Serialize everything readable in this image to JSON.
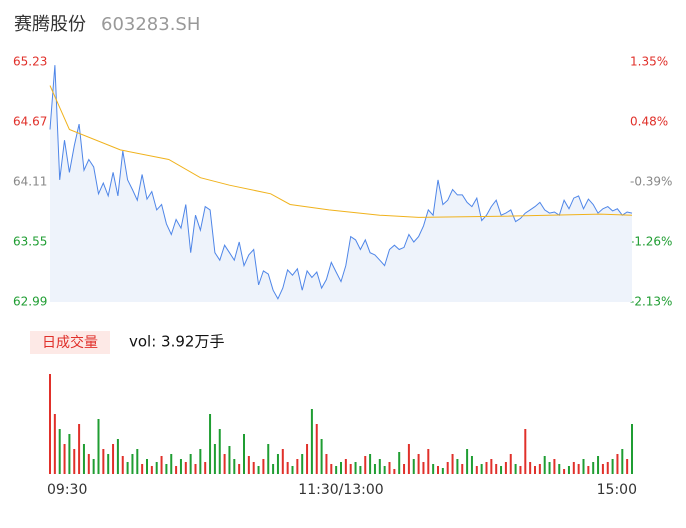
{
  "header": {
    "name": "赛腾股份",
    "code": "603283.SH"
  },
  "chart_data": {
    "type": "intraday",
    "xlim": [
      0,
      240
    ],
    "xticks": [
      {
        "value": 0,
        "label": "09:30"
      },
      {
        "value": 120,
        "label": "11:30/13:00"
      },
      {
        "value": 240,
        "label": "15:00"
      }
    ],
    "ylim": [
      62.99,
      65.23
    ],
    "yticks": [
      65.23,
      64.67,
      64.11,
      63.55,
      62.99
    ],
    "y2lim": [
      -2.13,
      1.35
    ],
    "y2ticks": [
      {
        "value": 1.35,
        "label": "1.35%"
      },
      {
        "value": 0.48,
        "label": "0.48%"
      },
      {
        "value": -0.39,
        "label": "-0.39%"
      },
      {
        "value": -1.26,
        "label": "-1.26%"
      },
      {
        "value": -2.13,
        "label": "-2.13%"
      }
    ],
    "tick_colors": [
      "#e0302a",
      "#e0302a",
      "#888888",
      "#1f9d32",
      "#1f9d32"
    ],
    "price": {
      "color": "#4f86e8",
      "fill": "#eef3fb",
      "x": [
        0,
        2,
        4,
        6,
        8,
        10,
        12,
        14,
        16,
        18,
        20,
        22,
        24,
        26,
        28,
        30,
        32,
        34,
        36,
        38,
        40,
        42,
        44,
        46,
        48,
        50,
        52,
        54,
        56,
        58,
        60,
        62,
        64,
        66,
        68,
        70,
        72,
        74,
        76,
        78,
        80,
        82,
        84,
        86,
        88,
        90,
        92,
        94,
        96,
        98,
        100,
        102,
        104,
        106,
        108,
        110,
        112,
        114,
        116,
        118,
        120,
        122,
        124,
        126,
        128,
        130,
        132,
        134,
        136,
        138,
        140,
        142,
        144,
        146,
        148,
        150,
        152,
        154,
        156,
        158,
        160,
        162,
        164,
        166,
        168,
        170,
        172,
        174,
        176,
        178,
        180,
        182,
        184,
        186,
        188,
        190,
        192,
        194,
        196,
        198,
        200,
        202,
        204,
        206,
        208,
        210,
        212,
        214,
        216,
        218,
        220,
        222,
        224,
        226,
        228,
        230,
        232,
        234,
        236,
        238,
        240
      ],
      "values": [
        64.6,
        65.2,
        64.13,
        64.5,
        64.2,
        64.45,
        64.65,
        64.22,
        64.32,
        64.25,
        64.0,
        64.1,
        63.98,
        64.2,
        63.98,
        64.4,
        64.13,
        64.04,
        63.94,
        64.18,
        63.95,
        64.02,
        63.85,
        63.9,
        63.72,
        63.62,
        63.76,
        63.68,
        63.9,
        63.45,
        63.8,
        63.66,
        63.88,
        63.85,
        63.45,
        63.38,
        63.52,
        63.45,
        63.38,
        63.55,
        63.33,
        63.43,
        63.48,
        63.15,
        63.28,
        63.25,
        63.1,
        63.02,
        63.12,
        63.29,
        63.24,
        63.3,
        63.1,
        63.28,
        63.22,
        63.27,
        63.12,
        63.2,
        63.36,
        63.27,
        63.18,
        63.33,
        63.6,
        63.57,
        63.48,
        63.57,
        63.45,
        63.43,
        63.38,
        63.33,
        63.48,
        63.52,
        63.48,
        63.5,
        63.62,
        63.55,
        63.6,
        63.7,
        63.85,
        63.8,
        64.13,
        63.9,
        63.94,
        64.04,
        63.99,
        63.99,
        63.92,
        63.88,
        63.96,
        63.75,
        63.8,
        63.88,
        63.94,
        63.8,
        63.82,
        63.85,
        63.74,
        63.77,
        63.82,
        63.85,
        63.88,
        63.92,
        63.85,
        63.82,
        63.83,
        63.8,
        63.94,
        63.86,
        63.96,
        63.98,
        63.86,
        63.95,
        63.9,
        63.82,
        63.86,
        63.88,
        63.84,
        63.86,
        63.8,
        63.83,
        63.82
      ]
    },
    "average": {
      "color": "#f0b21c",
      "x": [
        0,
        8,
        29,
        49,
        62,
        74,
        91,
        99,
        115,
        136,
        152,
        186,
        227,
        240
      ],
      "values": [
        65.01,
        64.6,
        64.41,
        64.32,
        64.15,
        64.08,
        64.0,
        63.9,
        63.85,
        63.8,
        63.78,
        63.79,
        63.81,
        63.8
      ]
    },
    "volume": {
      "label": "日成交量",
      "total": "vol: 3.92万手",
      "up_color": "#e0302a",
      "down_color": "#1f9d32",
      "ylim": [
        0,
        1600
      ],
      "values": [
        1600,
        960,
        720,
        480,
        640,
        400,
        800,
        480,
        320,
        240,
        880,
        400,
        320,
        480,
        560,
        288,
        192,
        320,
        400,
        160,
        240,
        128,
        192,
        288,
        160,
        320,
        128,
        240,
        192,
        320,
        160,
        400,
        192,
        960,
        480,
        720,
        320,
        448,
        240,
        160,
        640,
        288,
        192,
        128,
        240,
        480,
        160,
        320,
        400,
        192,
        128,
        240,
        320,
        480,
        1040,
        800,
        560,
        320,
        160,
        128,
        192,
        240,
        160,
        192,
        128,
        288,
        320,
        160,
        240,
        128,
        192,
        80,
        352,
        160,
        480,
        240,
        320,
        192,
        400,
        160,
        128,
        96,
        192,
        320,
        240,
        160,
        400,
        288,
        128,
        160,
        192,
        240,
        160,
        128,
        192,
        320,
        160,
        128,
        720,
        192,
        128,
        160,
        288,
        192,
        240,
        160,
        80,
        128,
        192,
        160,
        240,
        128,
        192,
        288,
        160,
        192,
        240,
        320,
        400,
        240,
        800
      ]
    }
  }
}
